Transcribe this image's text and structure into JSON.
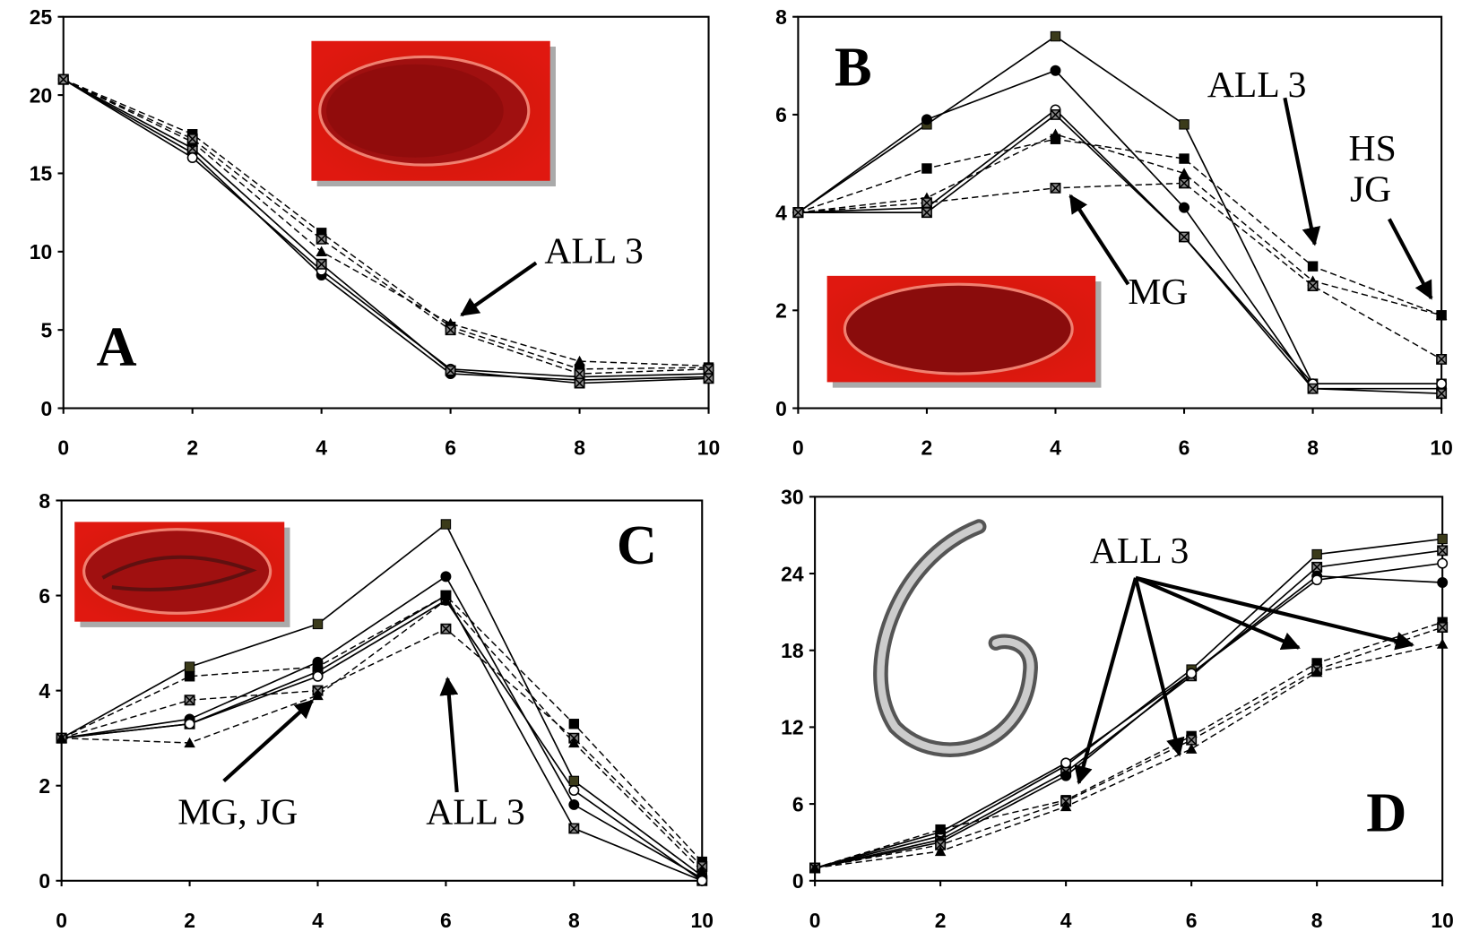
{
  "chart_data": [
    {
      "type": "line",
      "label": "A",
      "annotations": [
        "ALL 3"
      ],
      "x": [
        0,
        2,
        4,
        6,
        8,
        10
      ],
      "xlim": [
        0,
        10
      ],
      "xticks": [
        0,
        2,
        4,
        6,
        8,
        10
      ],
      "ylim": [
        0,
        25
      ],
      "yticks": [
        0,
        5,
        10,
        15,
        20,
        25
      ],
      "series": [
        {
          "line": "solid",
          "marker": "circle",
          "color": "#000",
          "values": [
            21,
            16.3,
            8.5,
            2.2,
            1.8,
            2.0
          ]
        },
        {
          "line": "solid",
          "marker": "open-circle",
          "color": "#000",
          "values": [
            21,
            16.0,
            8.8,
            2.5,
            2.0,
            2.2
          ]
        },
        {
          "line": "solid",
          "marker": "x",
          "color": "#000",
          "values": [
            21,
            16.6,
            9.2,
            2.4,
            1.6,
            1.9
          ]
        },
        {
          "line": "dashed",
          "marker": "square",
          "color": "#000",
          "values": [
            21,
            17.5,
            11.2,
            5.2,
            2.5,
            2.6
          ]
        },
        {
          "line": "dashed",
          "marker": "triangle",
          "color": "#000",
          "values": [
            21,
            17.0,
            10.0,
            5.4,
            3.0,
            2.7
          ]
        },
        {
          "line": "dashed",
          "marker": "x",
          "color": "#000",
          "values": [
            21,
            17.2,
            10.8,
            5.0,
            2.2,
            2.5
          ]
        }
      ]
    },
    {
      "type": "line",
      "label": "B",
      "annotations": [
        "ALL 3",
        "HS",
        "JG",
        "MG"
      ],
      "x": [
        0,
        2,
        4,
        6,
        8,
        10
      ],
      "xlim": [
        0,
        10
      ],
      "xticks": [
        0,
        2,
        4,
        6,
        8,
        10
      ],
      "ylim": [
        0,
        8
      ],
      "yticks": [
        0,
        2,
        4,
        6,
        8
      ],
      "series": [
        {
          "line": "solid",
          "marker": "square",
          "color": "#3b3b1a",
          "values": [
            4,
            5.8,
            7.6,
            5.8,
            0.5,
            0.5
          ]
        },
        {
          "line": "solid",
          "marker": "circle",
          "color": "#000",
          "values": [
            4,
            5.9,
            6.9,
            4.1,
            0.4,
            0.4
          ]
        },
        {
          "line": "solid",
          "marker": "open-circle",
          "color": "#000",
          "values": [
            4,
            4.1,
            6.1,
            3.5,
            0.5,
            0.5
          ]
        },
        {
          "line": "solid",
          "marker": "x",
          "color": "#000",
          "values": [
            4,
            4.0,
            6.0,
            3.5,
            0.4,
            0.3
          ]
        },
        {
          "line": "dashed",
          "marker": "square",
          "color": "#000",
          "values": [
            4,
            4.9,
            5.5,
            5.1,
            2.9,
            1.9
          ]
        },
        {
          "line": "dashed",
          "marker": "triangle",
          "color": "#000",
          "values": [
            4,
            4.3,
            5.6,
            4.8,
            2.6,
            1.9
          ]
        },
        {
          "line": "dashed",
          "marker": "x",
          "color": "#000",
          "values": [
            4,
            4.2,
            4.5,
            4.6,
            2.5,
            1.0
          ]
        }
      ]
    },
    {
      "type": "line",
      "label": "C",
      "annotations": [
        "MG, JG",
        "ALL 3"
      ],
      "x": [
        0,
        2,
        4,
        6,
        8,
        10
      ],
      "xlim": [
        0,
        10
      ],
      "xticks": [
        0,
        2,
        4,
        6,
        8,
        10
      ],
      "ylim": [
        0,
        8
      ],
      "yticks": [
        0,
        2,
        4,
        6,
        8
      ],
      "series": [
        {
          "line": "solid",
          "marker": "square",
          "color": "#3b3b1a",
          "values": [
            3,
            4.5,
            5.4,
            7.5,
            2.1,
            0.1
          ]
        },
        {
          "line": "solid",
          "marker": "circle",
          "color": "#000",
          "values": [
            3,
            3.4,
            4.6,
            6.4,
            1.6,
            0.05
          ]
        },
        {
          "line": "solid",
          "marker": "x",
          "color": "#000",
          "values": [
            3,
            3.3,
            4.4,
            6.0,
            1.1,
            0
          ]
        },
        {
          "line": "solid",
          "marker": "open-circle",
          "color": "#000",
          "values": [
            3,
            3.3,
            4.3,
            5.9,
            1.9,
            0
          ]
        },
        {
          "line": "dashed",
          "marker": "square",
          "color": "#000",
          "values": [
            3,
            4.3,
            4.5,
            6.0,
            3.3,
            0.4
          ]
        },
        {
          "line": "dashed",
          "marker": "x",
          "color": "#000",
          "values": [
            3,
            3.8,
            4.0,
            5.3,
            3.0,
            0.3
          ]
        },
        {
          "line": "dashed",
          "marker": "triangle",
          "color": "#000",
          "values": [
            3,
            2.9,
            3.9,
            5.9,
            2.9,
            0.2
          ]
        }
      ]
    },
    {
      "type": "line",
      "label": "D",
      "annotations": [
        "ALL 3"
      ],
      "x": [
        0,
        2,
        4,
        6,
        8,
        10
      ],
      "xlim": [
        0,
        10
      ],
      "xticks": [
        0,
        2,
        4,
        6,
        8,
        10
      ],
      "ylim": [
        0,
        30
      ],
      "yticks": [
        0,
        6,
        12,
        18,
        24,
        30
      ],
      "series": [
        {
          "line": "solid",
          "marker": "square",
          "color": "#3b3b1a",
          "values": [
            1,
            3.5,
            9.0,
            16.5,
            25.5,
            26.7
          ]
        },
        {
          "line": "solid",
          "marker": "x",
          "color": "#000",
          "values": [
            1,
            3.2,
            8.5,
            16.0,
            24.5,
            25.8
          ]
        },
        {
          "line": "solid",
          "marker": "circle",
          "color": "#000",
          "values": [
            1,
            3.0,
            8.2,
            16.2,
            23.8,
            23.3
          ]
        },
        {
          "line": "solid",
          "marker": "open-circle",
          "color": "#000",
          "values": [
            1,
            3.8,
            9.2,
            16.2,
            23.5,
            24.8
          ]
        },
        {
          "line": "dashed",
          "marker": "square",
          "color": "#000",
          "values": [
            1,
            4.0,
            6.3,
            11.3,
            17.0,
            20.2
          ]
        },
        {
          "line": "dashed",
          "marker": "x",
          "color": "#000",
          "values": [
            1,
            2.8,
            6.2,
            11.0,
            16.5,
            19.8
          ]
        },
        {
          "line": "dashed",
          "marker": "triangle",
          "color": "#000",
          "values": [
            1,
            2.3,
            5.8,
            10.3,
            16.3,
            18.5
          ]
        }
      ]
    }
  ]
}
